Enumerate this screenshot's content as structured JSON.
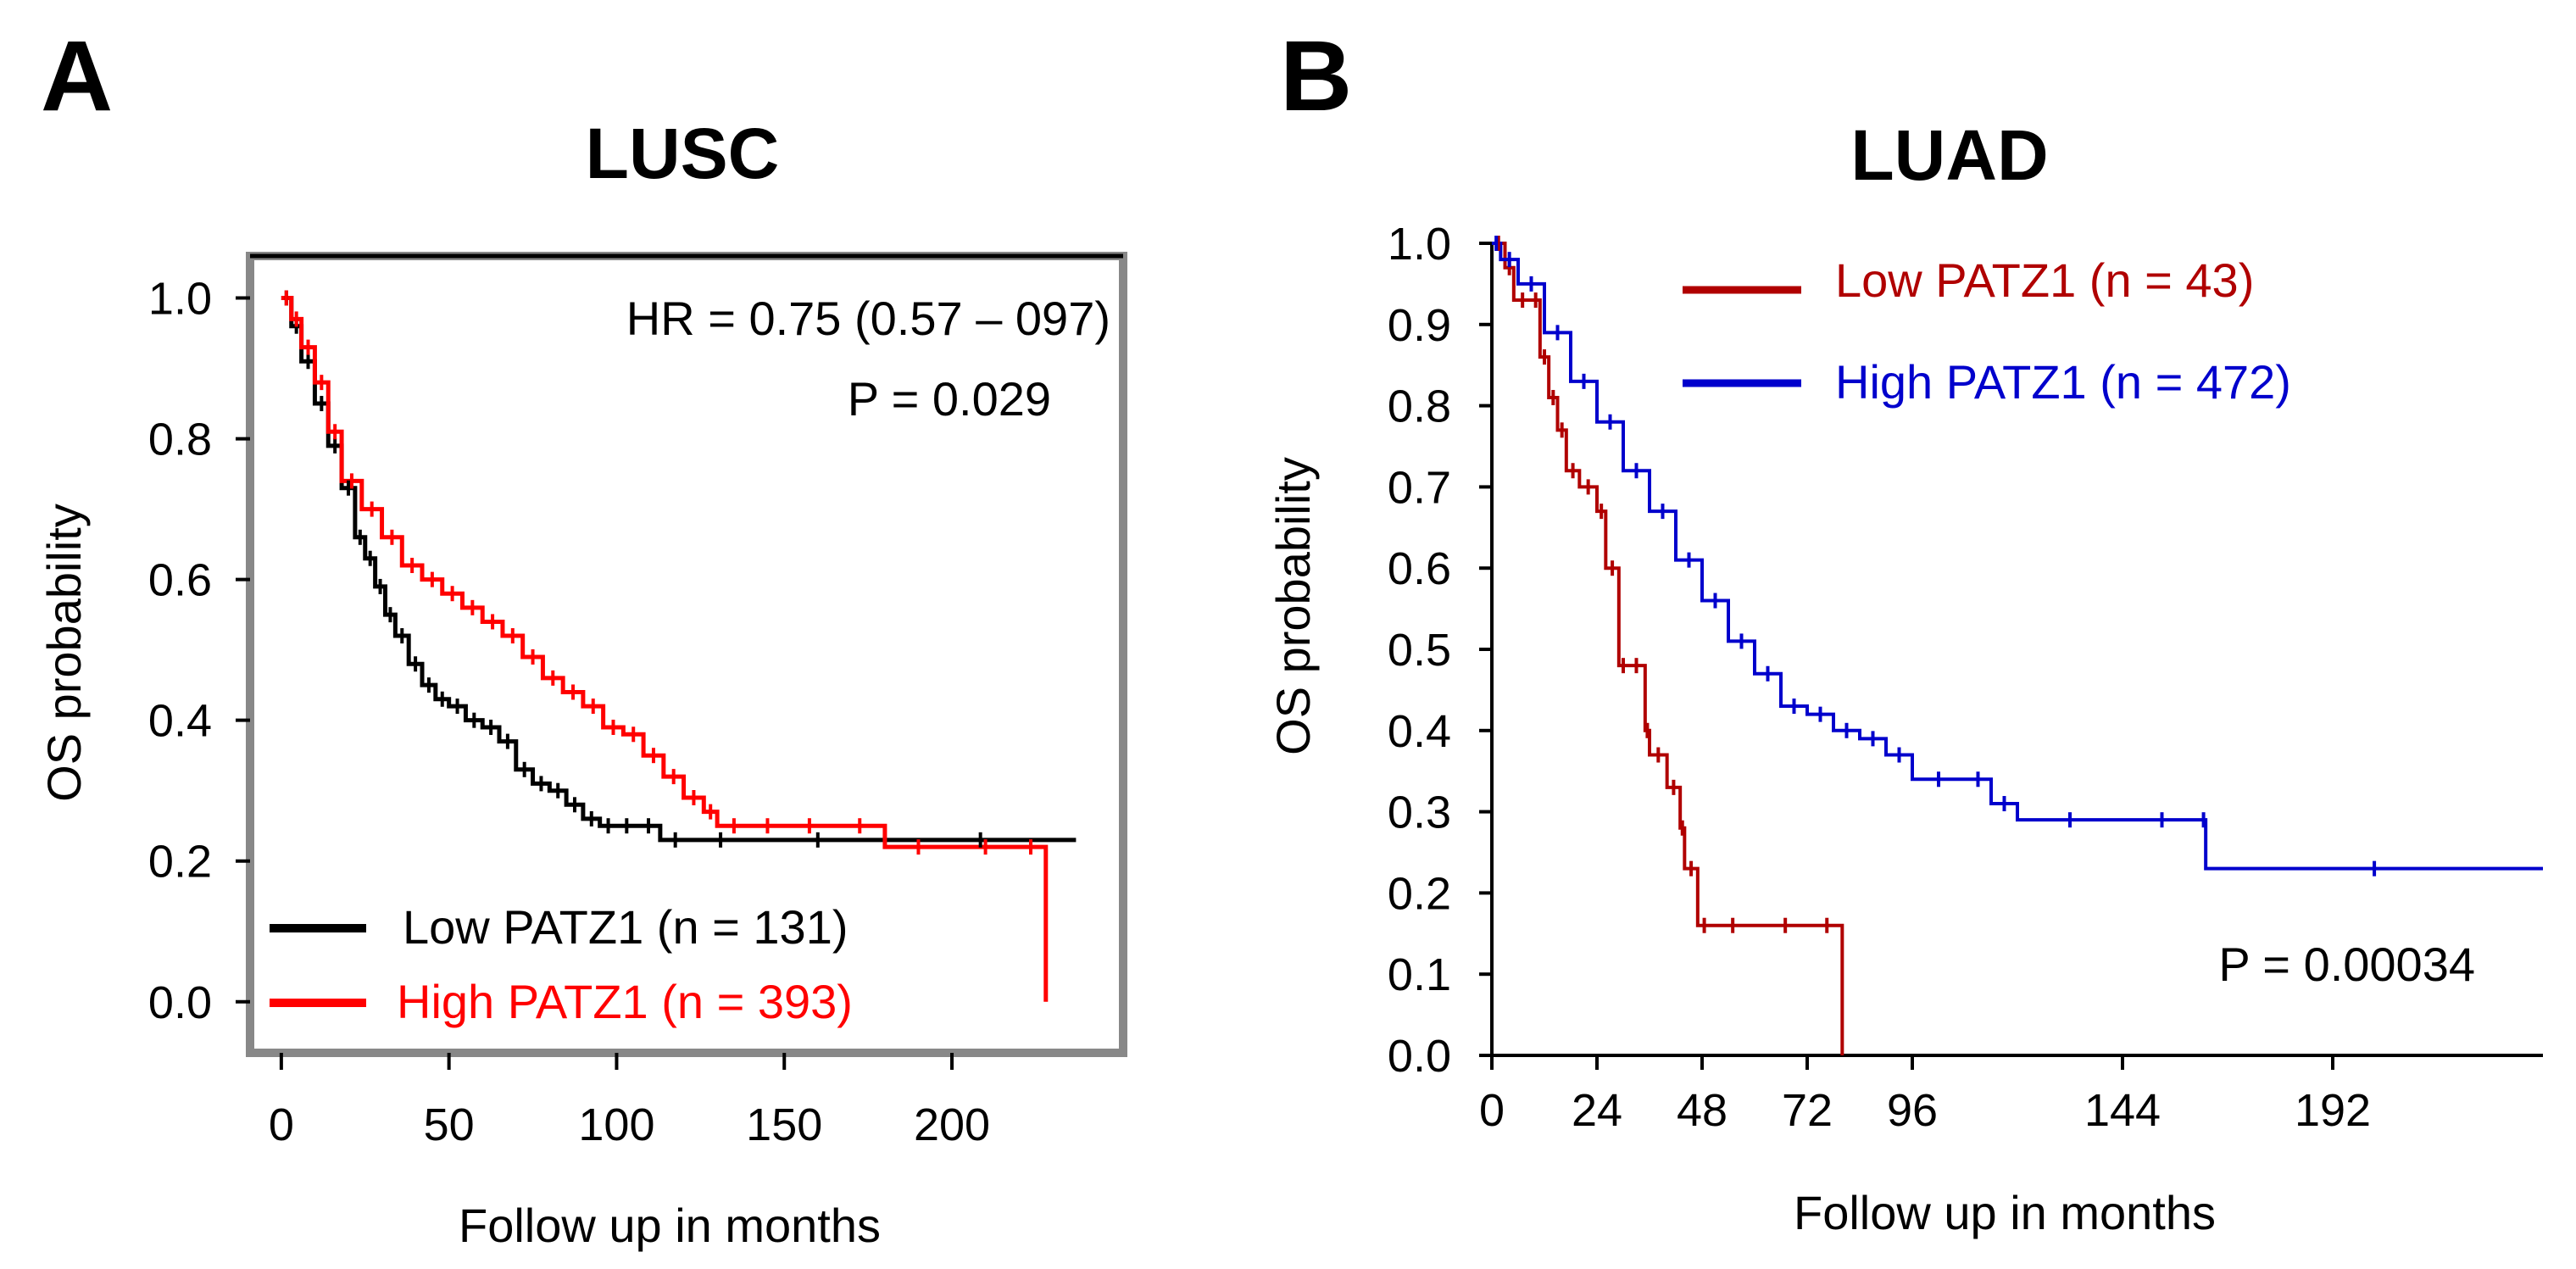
{
  "chart_data": [
    {
      "panel": "A",
      "type": "line",
      "title": "LUSC",
      "xlabel": "Follow up in months",
      "ylabel": "OS probability",
      "xlim": [
        -3,
        246
      ],
      "ylim": [
        -0.04,
        1.05
      ],
      "xticks": [
        0,
        50,
        100,
        150,
        200
      ],
      "yticks": [
        "0.0",
        "0.2",
        "0.4",
        "0.6",
        "0.8",
        "1.0"
      ],
      "annotations": [
        "HR = 0.75 (0.57 – 097)",
        "P = 0.029"
      ],
      "legend_position": "bottom-left",
      "series": [
        {
          "name": "Low PATZ1 (n = 131)",
          "color": "#000000",
          "x": [
            0,
            3,
            6,
            10,
            14,
            18,
            22,
            25,
            28,
            31,
            34,
            38,
            42,
            46,
            50,
            55,
            60,
            65,
            70,
            75,
            80,
            85,
            90,
            95,
            100,
            106,
            113,
            122,
            140,
            180,
            237
          ],
          "y": [
            1.0,
            0.96,
            0.91,
            0.85,
            0.79,
            0.73,
            0.66,
            0.63,
            0.59,
            0.55,
            0.52,
            0.48,
            0.45,
            0.43,
            0.42,
            0.4,
            0.39,
            0.37,
            0.33,
            0.31,
            0.3,
            0.28,
            0.26,
            0.25,
            0.25,
            0.25,
            0.23,
            0.23,
            0.23,
            0.23,
            0.23
          ]
        },
        {
          "name": "High PATZ1 (n = 393)",
          "color": "#ff0000",
          "x": [
            0,
            3,
            6,
            10,
            14,
            18,
            24,
            30,
            36,
            42,
            48,
            54,
            60,
            66,
            72,
            78,
            84,
            90,
            96,
            102,
            108,
            114,
            120,
            126,
            130,
            140,
            150,
            165,
            180,
            200,
            220,
            227,
            228
          ],
          "y": [
            1.0,
            0.97,
            0.93,
            0.88,
            0.81,
            0.74,
            0.7,
            0.66,
            0.62,
            0.6,
            0.58,
            0.56,
            0.54,
            0.52,
            0.49,
            0.46,
            0.44,
            0.42,
            0.39,
            0.38,
            0.35,
            0.32,
            0.29,
            0.27,
            0.25,
            0.25,
            0.25,
            0.25,
            0.22,
            0.22,
            0.22,
            0.22,
            0.0
          ]
        }
      ]
    },
    {
      "panel": "B",
      "type": "line",
      "title": "LUAD",
      "xlabel": "Follow up in months",
      "ylabel": "OS probability",
      "xlim": [
        0,
        240
      ],
      "ylim": [
        0,
        1.0
      ],
      "xticks": [
        0,
        24,
        48,
        72,
        96,
        144,
        192
      ],
      "yticks": [
        "0.0",
        "0.1",
        "0.2",
        "0.3",
        "0.4",
        "0.5",
        "0.6",
        "0.7",
        "0.8",
        "0.9",
        "1.0"
      ],
      "annotations": [
        "P = 0.00034"
      ],
      "legend_position": "top-right",
      "series": [
        {
          "name": "Low PATZ1 (n = 43)",
          "color": "#b00000",
          "x": [
            0,
            3,
            5,
            9,
            11,
            13,
            15,
            17,
            20,
            24,
            26,
            29,
            31,
            35,
            36,
            40,
            43,
            44,
            47,
            50,
            60,
            74,
            79,
            80
          ],
          "y": [
            1.0,
            0.97,
            0.93,
            0.93,
            0.86,
            0.81,
            0.77,
            0.72,
            0.7,
            0.67,
            0.6,
            0.48,
            0.48,
            0.4,
            0.37,
            0.33,
            0.28,
            0.23,
            0.16,
            0.16,
            0.16,
            0.16,
            0.16,
            0.0
          ]
        },
        {
          "name": "High PATZ1 (n = 472)",
          "color": "#0000cc",
          "x": [
            0,
            2,
            6,
            12,
            18,
            24,
            30,
            36,
            42,
            48,
            54,
            60,
            66,
            72,
            78,
            84,
            90,
            96,
            108,
            114,
            120,
            144,
            162,
            163,
            240
          ],
          "y": [
            1.0,
            0.98,
            0.95,
            0.89,
            0.83,
            0.78,
            0.72,
            0.67,
            0.61,
            0.56,
            0.51,
            0.47,
            0.43,
            0.42,
            0.4,
            0.39,
            0.37,
            0.34,
            0.34,
            0.31,
            0.29,
            0.29,
            0.29,
            0.23,
            0.23
          ]
        }
      ]
    }
  ]
}
